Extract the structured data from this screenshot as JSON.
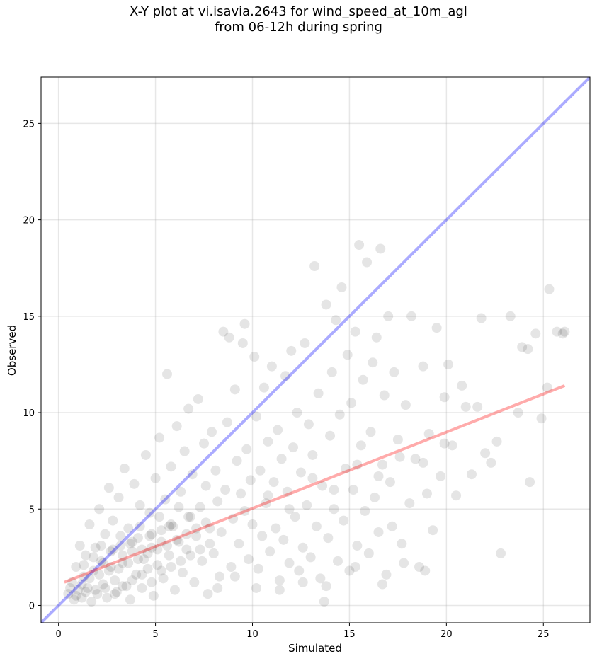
{
  "chart_data": {
    "type": "scatter",
    "title_line1": "X-Y plot at vi.isavia.2643 for wind_speed_at_10m_agl",
    "title_line2": "from 06-12h during spring",
    "xlabel": "Simulated",
    "ylabel": "Observed",
    "xlim": [
      -0.9,
      27.4
    ],
    "ylim": [
      -0.9,
      27.4
    ],
    "xticks": [
      0,
      5,
      10,
      15,
      20,
      25
    ],
    "yticks": [
      0,
      5,
      10,
      15,
      20,
      25
    ],
    "grid": true,
    "point_color": "#000000",
    "point_alpha": 0.1,
    "identity_line": {
      "color": "#0000ff",
      "alpha": 0.33,
      "x": [
        -0.9,
        27.4
      ],
      "y": [
        -0.9,
        27.4
      ]
    },
    "regression_line": {
      "color": "#ff0000",
      "alpha": 0.33,
      "x": [
        0.3,
        26.1
      ],
      "y": [
        1.2,
        11.4
      ]
    },
    "points": [
      [
        0.5,
        0.6
      ],
      [
        0.7,
        1.2
      ],
      [
        0.8,
        0.3
      ],
      [
        0.9,
        2.0
      ],
      [
        1.0,
        0.8
      ],
      [
        1.1,
        3.1
      ],
      [
        1.2,
        0.4
      ],
      [
        1.3,
        1.5
      ],
      [
        1.4,
        2.6
      ],
      [
        1.5,
        0.9
      ],
      [
        1.6,
        4.2
      ],
      [
        1.7,
        0.2
      ],
      [
        1.8,
        1.8
      ],
      [
        1.9,
        3.0
      ],
      [
        2.0,
        0.6
      ],
      [
        2.1,
        5.0
      ],
      [
        2.2,
        2.3
      ],
      [
        2.3,
        1.1
      ],
      [
        2.4,
        3.7
      ],
      [
        2.5,
        0.4
      ],
      [
        2.6,
        6.1
      ],
      [
        2.7,
        2.0
      ],
      [
        2.8,
        4.4
      ],
      [
        2.9,
        1.3
      ],
      [
        3.0,
        0.7
      ],
      [
        3.1,
        5.6
      ],
      [
        3.2,
        3.1
      ],
      [
        3.3,
        2.2
      ],
      [
        3.4,
        7.1
      ],
      [
        3.5,
        1.0
      ],
      [
        3.6,
        4.0
      ],
      [
        3.7,
        0.3
      ],
      [
        3.8,
        2.8
      ],
      [
        3.9,
        6.3
      ],
      [
        4.0,
        1.6
      ],
      [
        4.1,
        3.5
      ],
      [
        4.2,
        5.2
      ],
      [
        4.3,
        0.9
      ],
      [
        4.4,
        2.4
      ],
      [
        4.5,
        7.8
      ],
      [
        4.6,
        1.9
      ],
      [
        4.7,
        4.8
      ],
      [
        4.8,
        3.0
      ],
      [
        4.9,
        0.5
      ],
      [
        5.0,
        6.6
      ],
      [
        5.1,
        2.1
      ],
      [
        5.2,
        8.7
      ],
      [
        5.3,
        3.9
      ],
      [
        5.4,
        1.4
      ],
      [
        5.5,
        5.5
      ],
      [
        5.6,
        12.0
      ],
      [
        5.7,
        2.6
      ],
      [
        5.8,
        7.2
      ],
      [
        5.9,
        4.1
      ],
      [
        6.0,
        0.8
      ],
      [
        6.1,
        9.3
      ],
      [
        6.2,
        3.3
      ],
      [
        6.3,
        5.9
      ],
      [
        6.4,
        1.7
      ],
      [
        6.5,
        8.0
      ],
      [
        6.6,
        2.9
      ],
      [
        6.7,
        10.2
      ],
      [
        6.8,
        4.6
      ],
      [
        6.9,
        6.8
      ],
      [
        7.0,
        1.2
      ],
      [
        7.1,
        3.6
      ],
      [
        7.2,
        10.7
      ],
      [
        7.3,
        5.1
      ],
      [
        7.4,
        2.3
      ],
      [
        7.5,
        8.4
      ],
      [
        7.6,
        6.2
      ],
      [
        7.7,
        0.6
      ],
      [
        7.8,
        4.0
      ],
      [
        7.9,
        9.0
      ],
      [
        8.0,
        2.7
      ],
      [
        8.1,
        7.0
      ],
      [
        8.2,
        5.4
      ],
      [
        8.3,
        1.5
      ],
      [
        8.4,
        3.8
      ],
      [
        8.5,
        14.2
      ],
      [
        8.6,
        6.0
      ],
      [
        8.7,
        9.5
      ],
      [
        8.8,
        13.9
      ],
      [
        8.9,
        2.0
      ],
      [
        9.0,
        4.5
      ],
      [
        9.1,
        11.2
      ],
      [
        9.2,
        7.5
      ],
      [
        9.3,
        3.2
      ],
      [
        9.4,
        5.8
      ],
      [
        9.5,
        13.6
      ],
      [
        9.6,
        14.6
      ],
      [
        9.7,
        8.1
      ],
      [
        9.8,
        2.4
      ],
      [
        9.9,
        6.5
      ],
      [
        10.0,
        4.2
      ],
      [
        10.1,
        12.9
      ],
      [
        10.2,
        9.8
      ],
      [
        10.3,
        1.9
      ],
      [
        10.4,
        7.0
      ],
      [
        10.5,
        3.6
      ],
      [
        10.6,
        11.3
      ],
      [
        10.7,
        5.3
      ],
      [
        10.8,
        8.5
      ],
      [
        10.9,
        2.8
      ],
      [
        11.0,
        12.4
      ],
      [
        11.1,
        6.4
      ],
      [
        11.2,
        4.0
      ],
      [
        11.3,
        9.1
      ],
      [
        11.4,
        1.3
      ],
      [
        11.5,
        7.6
      ],
      [
        11.6,
        3.4
      ],
      [
        11.7,
        11.9
      ],
      [
        11.8,
        5.9
      ],
      [
        11.9,
        2.2
      ],
      [
        12.0,
        13.2
      ],
      [
        12.1,
        8.2
      ],
      [
        12.2,
        4.6
      ],
      [
        12.3,
        10.0
      ],
      [
        12.4,
        1.8
      ],
      [
        12.5,
        6.9
      ],
      [
        12.6,
        3.0
      ],
      [
        12.7,
        13.6
      ],
      [
        12.8,
        5.2
      ],
      [
        12.9,
        9.4
      ],
      [
        13.0,
        2.5
      ],
      [
        13.1,
        7.8
      ],
      [
        13.2,
        17.6
      ],
      [
        13.3,
        4.1
      ],
      [
        13.4,
        11.0
      ],
      [
        13.5,
        1.4
      ],
      [
        13.6,
        6.2
      ],
      [
        13.7,
        0.2
      ],
      [
        13.8,
        15.6
      ],
      [
        13.9,
        3.5
      ],
      [
        14.0,
        8.8
      ],
      [
        14.1,
        12.1
      ],
      [
        14.2,
        5.0
      ],
      [
        14.3,
        14.8
      ],
      [
        14.4,
        2.3
      ],
      [
        14.5,
        9.9
      ],
      [
        14.6,
        16.5
      ],
      [
        14.7,
        4.4
      ],
      [
        14.8,
        7.1
      ],
      [
        14.9,
        13.0
      ],
      [
        15.0,
        1.8
      ],
      [
        15.1,
        10.5
      ],
      [
        15.2,
        6.0
      ],
      [
        15.3,
        14.2
      ],
      [
        15.4,
        3.1
      ],
      [
        15.5,
        18.7
      ],
      [
        15.6,
        8.3
      ],
      [
        15.7,
        11.7
      ],
      [
        15.8,
        4.9
      ],
      [
        15.9,
        17.8
      ],
      [
        16.0,
        2.7
      ],
      [
        16.1,
        9.0
      ],
      [
        16.2,
        12.6
      ],
      [
        16.3,
        5.6
      ],
      [
        16.4,
        13.9
      ],
      [
        16.5,
        3.8
      ],
      [
        16.6,
        18.5
      ],
      [
        16.7,
        7.3
      ],
      [
        16.8,
        10.9
      ],
      [
        16.9,
        1.6
      ],
      [
        17.0,
        15.0
      ],
      [
        17.1,
        6.4
      ],
      [
        17.2,
        4.1
      ],
      [
        17.3,
        12.1
      ],
      [
        17.5,
        8.6
      ],
      [
        17.7,
        3.2
      ],
      [
        17.9,
        10.4
      ],
      [
        18.1,
        5.3
      ],
      [
        18.2,
        15.0
      ],
      [
        18.4,
        7.6
      ],
      [
        18.6,
        2.0
      ],
      [
        18.8,
        12.4
      ],
      [
        19.0,
        5.8
      ],
      [
        19.1,
        8.9
      ],
      [
        19.3,
        3.9
      ],
      [
        19.5,
        14.4
      ],
      [
        19.7,
        6.7
      ],
      [
        19.9,
        10.8
      ],
      [
        20.1,
        12.5
      ],
      [
        20.3,
        8.3
      ],
      [
        20.5,
        5.7
      ],
      [
        20.8,
        11.4
      ],
      [
        21.0,
        10.3
      ],
      [
        21.3,
        6.8
      ],
      [
        21.6,
        10.3
      ],
      [
        21.8,
        14.9
      ],
      [
        22.0,
        7.9
      ],
      [
        22.3,
        7.4
      ],
      [
        22.6,
        8.5
      ],
      [
        22.8,
        2.7
      ],
      [
        23.3,
        15.0
      ],
      [
        23.7,
        10.0
      ],
      [
        23.9,
        13.4
      ],
      [
        24.2,
        13.3
      ],
      [
        24.3,
        6.4
      ],
      [
        24.6,
        14.1
      ],
      [
        24.9,
        9.7
      ],
      [
        25.2,
        11.3
      ],
      [
        25.3,
        16.4
      ],
      [
        25.7,
        14.2
      ],
      [
        26.0,
        14.1
      ],
      [
        26.1,
        14.2
      ],
      [
        0.6,
        0.9
      ],
      [
        0.9,
        0.5
      ],
      [
        1.2,
        1.1
      ],
      [
        1.4,
        0.7
      ],
      [
        1.6,
        1.4
      ],
      [
        1.9,
        0.8
      ],
      [
        2.1,
        1.6
      ],
      [
        2.4,
        0.9
      ],
      [
        2.6,
        1.8
      ],
      [
        2.9,
        0.6
      ],
      [
        3.1,
        1.9
      ],
      [
        3.3,
        1.0
      ],
      [
        3.6,
        2.2
      ],
      [
        3.8,
        1.3
      ],
      [
        4.1,
        2.4
      ],
      [
        4.3,
        1.6
      ],
      [
        4.6,
        2.7
      ],
      [
        4.8,
        1.2
      ],
      [
        5.1,
        2.9
      ],
      [
        5.3,
        1.8
      ],
      [
        5.6,
        3.1
      ],
      [
        5.8,
        2.0
      ],
      [
        6.1,
        3.4
      ],
      [
        6.3,
        2.3
      ],
      [
        6.6,
        3.7
      ],
      [
        6.8,
        2.6
      ],
      [
        7.1,
        4.0
      ],
      [
        7.3,
        2.9
      ],
      [
        7.6,
        4.3
      ],
      [
        7.8,
        3.2
      ],
      [
        2.2,
        3.1
      ],
      [
        2.7,
        2.8
      ],
      [
        3.2,
        3.6
      ],
      [
        3.7,
        3.2
      ],
      [
        4.2,
        4.1
      ],
      [
        4.7,
        3.6
      ],
      [
        5.2,
        4.6
      ],
      [
        5.7,
        4.1
      ],
      [
        6.2,
        5.1
      ],
      [
        6.7,
        4.6
      ],
      [
        1.3,
        2.1
      ],
      [
        1.8,
        2.5
      ],
      [
        2.3,
        2.2
      ],
      [
        2.8,
        2.9
      ],
      [
        3.3,
        2.6
      ],
      [
        3.8,
        3.3
      ],
      [
        4.3,
        2.9
      ],
      [
        4.8,
        3.7
      ],
      [
        5.3,
        3.3
      ],
      [
        5.8,
        4.2
      ],
      [
        8.2,
        0.9
      ],
      [
        9.1,
        1.5
      ],
      [
        10.2,
        0.9
      ],
      [
        11.4,
        0.8
      ],
      [
        12.6,
        1.2
      ],
      [
        13.8,
        1.0
      ],
      [
        15.3,
        2.0
      ],
      [
        16.7,
        1.1
      ],
      [
        17.8,
        2.2
      ],
      [
        18.9,
        1.8
      ],
      [
        9.6,
        4.9
      ],
      [
        10.8,
        5.7
      ],
      [
        11.9,
        5.0
      ],
      [
        13.1,
        6.6
      ],
      [
        14.2,
        6.0
      ],
      [
        15.4,
        7.3
      ],
      [
        16.5,
        6.7
      ],
      [
        17.6,
        7.7
      ],
      [
        18.8,
        7.4
      ],
      [
        19.9,
        8.4
      ]
    ]
  }
}
